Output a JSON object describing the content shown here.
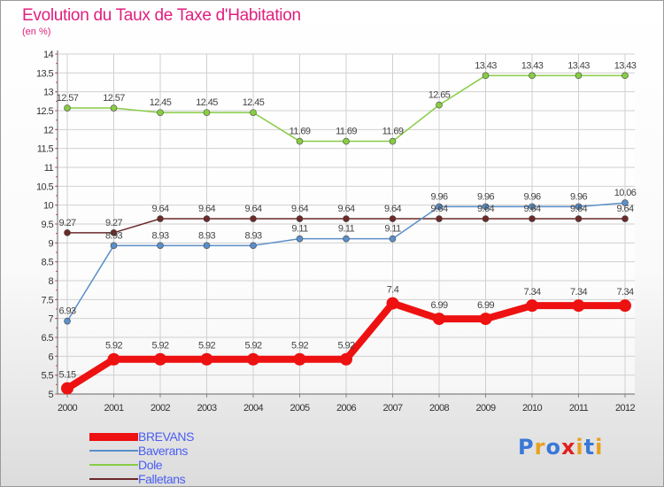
{
  "title": "Evolution du Taux de Taxe d'Habitation",
  "unit_label": "(en %)",
  "logo": {
    "text": "Proxiti",
    "colors": [
      "#3a78d8",
      "#e8a020",
      "#3a78d8",
      "#e02020",
      "#e8a020",
      "#3a78d8",
      "#e8a020"
    ]
  },
  "chart_data": {
    "type": "line",
    "title": "Evolution du Taux de Taxe d'Habitation",
    "ylabel": "(en %)",
    "xlabel": "",
    "x": [
      "2000",
      "2001",
      "2002",
      "2003",
      "2004",
      "2005",
      "2006",
      "2007",
      "2008",
      "2009",
      "2010",
      "2011",
      "2012"
    ],
    "ylim": [
      5,
      14
    ],
    "yticks": [
      "5",
      "5.5",
      "6",
      "6.5",
      "7",
      "7.5",
      "8",
      "8.5",
      "9",
      "9.5",
      "10",
      "10.5",
      "11",
      "11.5",
      "12",
      "12.5",
      "13",
      "13.5",
      "14"
    ],
    "grid": true,
    "legend_position": "bottom-left",
    "series": [
      {
        "name": "BREVANS",
        "color": "#ee1111",
        "values": [
          5.15,
          5.92,
          5.92,
          5.92,
          5.92,
          5.92,
          5.92,
          7.4,
          6.99,
          6.99,
          7.34,
          7.34,
          7.34
        ],
        "labels": [
          "5.15",
          "5.92",
          "5.92",
          "5.92",
          "5.92",
          "5.92",
          "5.92",
          "7.4",
          "6.99",
          "6.99",
          "7.34",
          "7.34",
          "7.34"
        ]
      },
      {
        "name": "Baverans",
        "color": "#5b8fc9",
        "values": [
          6.93,
          8.93,
          8.93,
          8.93,
          8.93,
          9.11,
          9.11,
          9.11,
          9.96,
          9.96,
          9.96,
          9.96,
          10.06
        ],
        "labels": [
          "6.93",
          "8.93",
          "8.93",
          "8.93",
          "8.93",
          "9.11",
          "9.11",
          "9.11",
          "9.96",
          "9.96",
          "9.96",
          "9.96",
          "10.06"
        ]
      },
      {
        "name": "Dole",
        "color": "#88cc44",
        "values": [
          12.57,
          12.57,
          12.45,
          12.45,
          12.45,
          11.69,
          11.69,
          11.69,
          12.65,
          13.43,
          13.43,
          13.43,
          13.43
        ],
        "labels": [
          "12.57",
          "12.57",
          "12.45",
          "12.45",
          "12.45",
          "11.69",
          "11.69",
          "11.69",
          "12.65",
          "13.43",
          "13.43",
          "13.43",
          "13.43"
        ]
      },
      {
        "name": "Falletans",
        "color": "#6b2a2a",
        "values": [
          9.27,
          9.27,
          9.64,
          9.64,
          9.64,
          9.64,
          9.64,
          9.64,
          9.64,
          9.64,
          9.64,
          9.64,
          9.64
        ],
        "labels": [
          "9.27",
          "9.27",
          "9.64",
          "9.64",
          "9.64",
          "9.64",
          "9.64",
          "9.64",
          "9.64",
          "9.64",
          "9.64",
          "9.64",
          "9.64"
        ]
      }
    ]
  }
}
